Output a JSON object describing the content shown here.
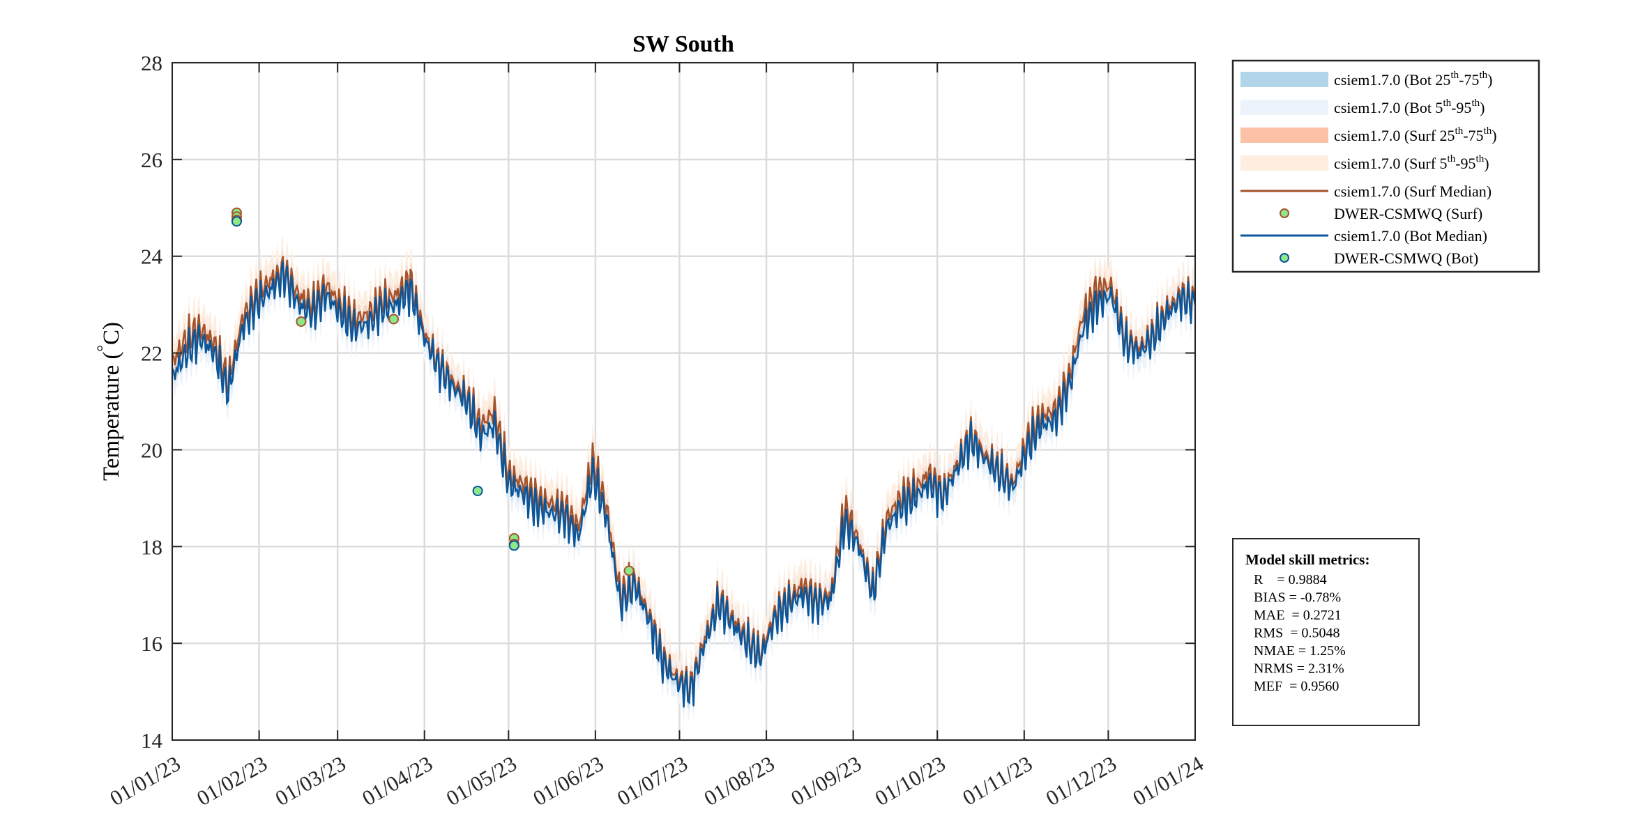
{
  "chart_data": {
    "type": "line",
    "title": "SW South",
    "xlabel": "",
    "ylabel": "Temperature (°C)",
    "ylabel_parts": [
      "Temperature (",
      "°",
      "C)"
    ],
    "xlim": [
      "2023-01-01",
      "2024-01-01"
    ],
    "ylim": [
      14,
      28
    ],
    "yticks": [
      14,
      16,
      18,
      20,
      22,
      24,
      26,
      28
    ],
    "xticks": [
      "2023-01-01",
      "2023-02-01",
      "2023-03-01",
      "2023-04-01",
      "2023-05-01",
      "2023-06-01",
      "2023-07-01",
      "2023-08-01",
      "2023-09-01",
      "2023-10-01",
      "2023-11-01",
      "2023-12-01",
      "2024-01-01"
    ],
    "xtick_labels": [
      "01/01/23",
      "01/02/23",
      "01/03/23",
      "01/04/23",
      "01/05/23",
      "01/06/23",
      "01/07/23",
      "01/08/23",
      "01/09/23",
      "01/10/23",
      "01/11/23",
      "01/12/23",
      "01/01/24"
    ],
    "grid": true,
    "legend_placement": "outside-top-right",
    "colors": {
      "bot_p25_75": "#b3d5ea",
      "bot_p5_95": "#edf3fa",
      "surf_p25_75": "#fcc2a8",
      "surf_p5_95": "#fdeee0",
      "surf_median": "#a6522a",
      "bot_median": "#0b5599",
      "obs_fill": "#8ee88a"
    },
    "dates": [
      "2023-01-01",
      "2023-01-06",
      "2023-01-11",
      "2023-01-16",
      "2023-01-21",
      "2023-01-26",
      "2023-01-31",
      "2023-02-05",
      "2023-02-10",
      "2023-02-15",
      "2023-02-20",
      "2023-02-25",
      "2023-03-02",
      "2023-03-07",
      "2023-03-12",
      "2023-03-17",
      "2023-03-22",
      "2023-03-27",
      "2023-04-01",
      "2023-04-06",
      "2023-04-11",
      "2023-04-16",
      "2023-04-21",
      "2023-04-26",
      "2023-05-01",
      "2023-05-06",
      "2023-05-11",
      "2023-05-16",
      "2023-05-21",
      "2023-05-26",
      "2023-05-31",
      "2023-06-05",
      "2023-06-10",
      "2023-06-15",
      "2023-06-20",
      "2023-06-25",
      "2023-06-30",
      "2023-07-05",
      "2023-07-10",
      "2023-07-15",
      "2023-07-20",
      "2023-07-25",
      "2023-07-30",
      "2023-08-04",
      "2023-08-09",
      "2023-08-14",
      "2023-08-19",
      "2023-08-24",
      "2023-08-29",
      "2023-09-03",
      "2023-09-08",
      "2023-09-13",
      "2023-09-18",
      "2023-09-23",
      "2023-09-28",
      "2023-10-03",
      "2023-10-08",
      "2023-10-13",
      "2023-10-18",
      "2023-10-23",
      "2023-10-28",
      "2023-11-02",
      "2023-11-07",
      "2023-11-12",
      "2023-11-17",
      "2023-11-22",
      "2023-11-27",
      "2023-12-02",
      "2023-12-07",
      "2023-12-12",
      "2023-12-17",
      "2023-12-22",
      "2023-12-27",
      "2024-01-01"
    ],
    "series": [
      {
        "name": "csiem1.7.0 (Surf Median)",
        "values": [
          21.8,
          22.3,
          22.5,
          22.2,
          21.4,
          22.7,
          23.2,
          23.5,
          23.7,
          23.2,
          23.0,
          23.4,
          23.0,
          22.7,
          22.8,
          23.1,
          23.2,
          23.5,
          22.4,
          21.8,
          21.4,
          21.1,
          20.5,
          20.8,
          19.5,
          19.3,
          19.0,
          18.9,
          18.8,
          18.4,
          19.8,
          18.8,
          17.0,
          17.3,
          16.6,
          15.7,
          15.3,
          15.1,
          16.1,
          16.9,
          16.5,
          16.1,
          15.8,
          16.6,
          16.9,
          17.2,
          16.9,
          17.0,
          18.8,
          18.1,
          17.1,
          18.6,
          19.0,
          19.2,
          19.5,
          19.1,
          19.7,
          20.3,
          19.9,
          19.6,
          19.3,
          20.2,
          20.7,
          20.8,
          21.5,
          22.8,
          23.3,
          23.4,
          22.3,
          22.1,
          22.4,
          22.9,
          23.2,
          23.1
        ]
      },
      {
        "name": "csiem1.7.0 (Bot Median)",
        "values": [
          21.5,
          22.0,
          22.3,
          22.0,
          21.2,
          22.5,
          23.0,
          23.3,
          23.6,
          23.0,
          22.8,
          23.2,
          22.8,
          22.5,
          22.6,
          22.9,
          23.0,
          23.3,
          22.3,
          21.7,
          21.3,
          21.0,
          20.3,
          20.5,
          19.3,
          19.1,
          18.8,
          18.7,
          18.6,
          18.2,
          19.5,
          18.6,
          16.8,
          17.2,
          16.5,
          15.6,
          15.2,
          15.0,
          16.0,
          16.8,
          16.4,
          16.0,
          15.7,
          16.5,
          16.8,
          17.0,
          16.8,
          16.9,
          18.5,
          18.0,
          17.0,
          18.4,
          18.8,
          19.0,
          19.3,
          19.0,
          19.6,
          20.2,
          19.8,
          19.5,
          19.2,
          20.0,
          20.5,
          20.6,
          21.3,
          22.5,
          23.0,
          23.2,
          22.2,
          22.0,
          22.3,
          22.8,
          23.1,
          23.0
        ]
      }
    ],
    "observations": [
      {
        "name": "DWER-CSMWQ (Surf)",
        "points": [
          {
            "date": "2023-01-24",
            "value": 24.9
          },
          {
            "date": "2023-01-24",
            "value": 24.82
          },
          {
            "date": "2023-01-24",
            "value": 24.75
          },
          {
            "date": "2023-02-16",
            "value": 22.65
          },
          {
            "date": "2023-03-21",
            "value": 22.7
          },
          {
            "date": "2023-05-03",
            "value": 18.17
          },
          {
            "date": "2023-05-03",
            "value": 18.05
          },
          {
            "date": "2023-06-13",
            "value": 17.5
          }
        ]
      },
      {
        "name": "DWER-CSMWQ (Bot)",
        "points": [
          {
            "date": "2023-01-24",
            "value": 24.72
          },
          {
            "date": "2023-04-20",
            "value": 19.15
          },
          {
            "date": "2023-05-03",
            "value": 18.02
          }
        ]
      }
    ],
    "legend": [
      {
        "kind": "band",
        "color": "#b3d5ea",
        "parts": [
          {
            "t": "csiem1.7.0 (Bot 25"
          },
          {
            "t": "th",
            "sup": true
          },
          {
            "t": "-75"
          },
          {
            "t": "th",
            "sup": true
          },
          {
            "t": ")"
          }
        ]
      },
      {
        "kind": "band",
        "color": "#edf3fa",
        "parts": [
          {
            "t": "csiem1.7.0 (Bot 5"
          },
          {
            "t": "th",
            "sup": true
          },
          {
            "t": "-95"
          },
          {
            "t": "th",
            "sup": true
          },
          {
            "t": ")"
          }
        ]
      },
      {
        "kind": "band",
        "color": "#fcc2a8",
        "parts": [
          {
            "t": "csiem1.7.0 (Surf 25"
          },
          {
            "t": "th",
            "sup": true
          },
          {
            "t": "-75"
          },
          {
            "t": "th",
            "sup": true
          },
          {
            "t": ")"
          }
        ]
      },
      {
        "kind": "band",
        "color": "#fdeee0",
        "parts": [
          {
            "t": "csiem1.7.0 (Surf 5"
          },
          {
            "t": "th",
            "sup": true
          },
          {
            "t": "-95"
          },
          {
            "t": "th",
            "sup": true
          },
          {
            "t": ")"
          }
        ]
      },
      {
        "kind": "line",
        "color": "#a6522a",
        "parts": [
          {
            "t": "csiem1.7.0 (Surf Median)"
          }
        ]
      },
      {
        "kind": "marker",
        "color": "#a6522a",
        "parts": [
          {
            "t": "DWER-CSMWQ (Surf)"
          }
        ]
      },
      {
        "kind": "line",
        "color": "#0b5599",
        "parts": [
          {
            "t": "csiem1.7.0 (Bot Median)"
          }
        ]
      },
      {
        "kind": "marker",
        "color": "#0b5599",
        "parts": [
          {
            "t": "DWER-CSMWQ (Bot)"
          }
        ]
      }
    ],
    "metrics": {
      "title": "Model skill metrics:",
      "lines": [
        "R    = 0.9884",
        "BIAS = -0.78%",
        "MAE  = 0.2721",
        "RMS  = 0.5048",
        "NMAE = 1.25%",
        "NRMS = 2.31%",
        "MEF  = 0.9560"
      ]
    }
  }
}
